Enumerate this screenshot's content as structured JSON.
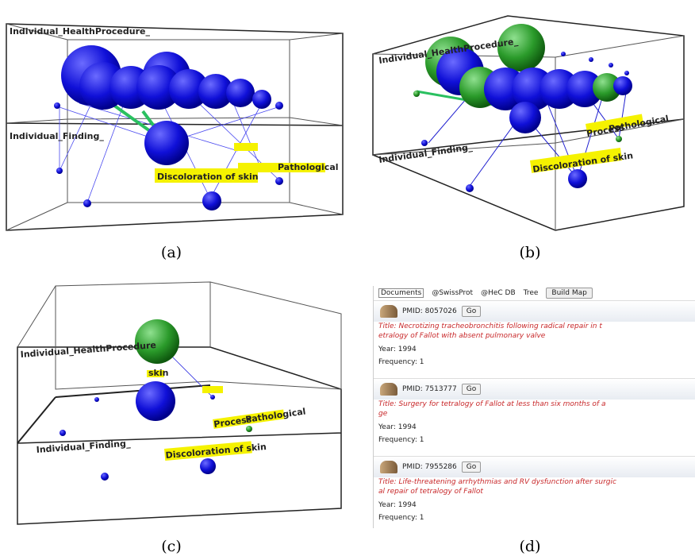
{
  "panels": [
    {
      "caption": "(a)",
      "labels": [
        "Individual_HealthProcedure_",
        "Individual_Finding_",
        "Discoloration of skin",
        "Pathological"
      ]
    },
    {
      "caption": "(b)",
      "labels": [
        "Individual_HealthProcedure_",
        "Individual_Finding_",
        "Discoloration of skin",
        "Pathological",
        "Process"
      ]
    },
    {
      "caption": "(c)",
      "labels": [
        "Individual_HealthProcedure",
        "Individual_Finding_",
        "Discoloration of skin",
        "Process",
        "Pathological",
        "skin"
      ]
    }
  ],
  "document_panel": {
    "caption": "(d)",
    "toolbar": [
      "Documents",
      "@SwissProt",
      "@HeC DB",
      "Tree",
      "Build Map"
    ],
    "documents": [
      {
        "pmid": "PMID: 8057026",
        "button": "Go",
        "title_lines": [
          "Title: Necrotizing tracheobronchitis following radical repair in t",
          "etralogy of Fallot with absent pulmonary valve"
        ],
        "year": "Year: 1994",
        "frequency": "Frequency: 1"
      },
      {
        "pmid": "PMID: 7513777",
        "button": "Go",
        "title_lines": [
          "Title: Surgery for tetralogy of Fallot at less than six months of a",
          "ge"
        ],
        "year": "Year: 1994",
        "frequency": "Frequency: 1"
      },
      {
        "pmid": "PMID: 7955286",
        "button": "Go",
        "title_lines": [
          "Title: Life-threatening arrhythmias and RV dysfunction after surgic",
          "al repair of tetralogy of Fallot"
        ],
        "year": "Year: 1994",
        "frequency": "Frequency: 1"
      }
    ]
  }
}
